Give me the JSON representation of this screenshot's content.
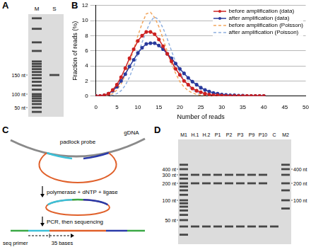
{
  "panel_a": {
    "letter": "A",
    "markers": [
      {
        "value": 150,
        "label": "150 nt"
      },
      {
        "value": 100,
        "label": "100 nt"
      },
      {
        "value": 50,
        "label": "50 nt"
      }
    ],
    "lanes": [
      {
        "label": "M",
        "bands": [
          40,
          50,
          60,
          70,
          80,
          90,
          100,
          110,
          120,
          130,
          140,
          150,
          160,
          170,
          180,
          190,
          200,
          250,
          300,
          400,
          500
        ]
      },
      {
        "label": "S",
        "bands": [
          150
        ]
      }
    ]
  },
  "panel_b": {
    "letter": "B"
  },
  "chart_data": {
    "type": "line",
    "xlabel": "Number of reads",
    "ylabel": "Fraction of reads (%)",
    "x": [
      0,
      1,
      2,
      3,
      4,
      5,
      6,
      7,
      8,
      9,
      10,
      11,
      12,
      13,
      14,
      15,
      16,
      17,
      18,
      19,
      20,
      21,
      22,
      23,
      24,
      25,
      26,
      27,
      28,
      29,
      30,
      31,
      32,
      33,
      34,
      35,
      36,
      37,
      38,
      39,
      40
    ],
    "xlim": [
      0,
      50
    ],
    "xticks": [
      0,
      5,
      10,
      15,
      20,
      25,
      30,
      35,
      40,
      45,
      50
    ],
    "ylim": [
      0,
      12
    ],
    "yticks": [
      0,
      2,
      4,
      6,
      8,
      10,
      12
    ],
    "grid": "y",
    "legend": "upper right",
    "series": [
      {
        "name": "before amplification (data)",
        "color": "#cc2222",
        "marker": "circle",
        "line_style": "solid",
        "values": [
          0,
          0,
          0.1,
          0.3,
          0.8,
          1.5,
          2.5,
          3.7,
          5.0,
          6.2,
          7.3,
          8.0,
          8.5,
          8.5,
          8.2,
          7.5,
          6.6,
          5.6,
          4.6,
          3.6,
          2.8,
          2.0,
          1.5,
          1.0,
          0.7,
          0.5,
          0.3,
          0.2,
          0.1,
          0.1,
          0.05,
          0,
          0,
          0,
          0,
          0,
          0,
          0,
          0,
          0,
          0
        ]
      },
      {
        "name": "after amplification (data)",
        "color": "#2a3a9c",
        "marker": "circle",
        "line_style": "solid",
        "values": [
          0,
          0,
          0.1,
          0.3,
          0.7,
          1.2,
          2.0,
          2.9,
          3.9,
          4.8,
          5.7,
          6.4,
          6.9,
          7.0,
          7.0,
          6.7,
          6.2,
          5.6,
          5.0,
          4.3,
          3.6,
          3.0,
          2.4,
          1.9,
          1.5,
          1.1,
          0.8,
          0.6,
          0.4,
          0.3,
          0.2,
          0.15,
          0.1,
          0.1,
          0.05,
          0.05,
          0,
          0,
          0,
          0,
          0
        ]
      },
      {
        "name": "before amplification (Poisson)",
        "color": "#f2a65e",
        "marker": "none",
        "line_style": "dashed",
        "values": [
          0,
          0,
          0,
          0.1,
          0.3,
          0.8,
          1.6,
          2.8,
          4.4,
          6.2,
          8.0,
          9.6,
          10.9,
          11.1,
          10.4,
          9.2,
          7.6,
          5.9,
          4.3,
          3.0,
          1.9,
          1.2,
          0.7,
          0.4,
          0.2,
          0.1,
          0.05,
          0,
          0,
          0,
          0,
          0,
          0,
          0,
          0,
          0,
          0,
          0,
          0,
          0,
          0
        ]
      },
      {
        "name": "after amplification (Poisson)",
        "color": "#8fb0e0",
        "marker": "none",
        "line_style": "dashed",
        "values": [
          0,
          0,
          0,
          0,
          0.1,
          0.3,
          0.7,
          1.4,
          2.5,
          3.9,
          5.5,
          7.1,
          8.6,
          9.9,
          10.5,
          10.1,
          9.0,
          7.6,
          6.0,
          4.5,
          3.2,
          2.1,
          1.3,
          0.8,
          0.5,
          0.3,
          0.15,
          0.1,
          0.05,
          0,
          0,
          0,
          0,
          0,
          0,
          0,
          0,
          0,
          0,
          0,
          0
        ]
      }
    ]
  },
  "panel_c": {
    "letter": "C",
    "probe_label": "padlock probe",
    "gdna_label": "gDNA",
    "step1": "polymerase + dNTP + ligase",
    "step2": "PCR, then sequencing",
    "primer_label": "seq primer",
    "length_label": "35 bases"
  },
  "panel_d": {
    "letter": "D",
    "markers_left": [
      {
        "value": 400,
        "label": "400 nt"
      },
      {
        "value": 300,
        "label": "300 nt"
      },
      {
        "value": 200,
        "label": "200 nt"
      },
      {
        "value": 100,
        "label": "100 nt"
      },
      {
        "value": 50,
        "label": "50 nt"
      }
    ],
    "markers_right": [
      {
        "value": 400,
        "label": "400 nt"
      },
      {
        "value": 200,
        "label": "200 nt"
      },
      {
        "value": 100,
        "label": "100 nt"
      }
    ],
    "lanes": [
      {
        "label": "M1",
        "bands": [
          500,
          400,
          300,
          250,
          200,
          175,
          150,
          125,
          100,
          90,
          80,
          70,
          60,
          50,
          40,
          30
        ]
      },
      {
        "label": "H.1",
        "bands": [
          300,
          200,
          40
        ]
      },
      {
        "label": "H.2",
        "bands": [
          300,
          200,
          40
        ]
      },
      {
        "label": "P1",
        "bands": [
          300,
          200,
          40
        ]
      },
      {
        "label": "P2",
        "bands": [
          300,
          200,
          40
        ]
      },
      {
        "label": "P3",
        "bands": [
          300,
          200,
          40
        ]
      },
      {
        "label": "P9",
        "bands": [
          300,
          200,
          40
        ]
      },
      {
        "label": "P10",
        "bands": [
          300,
          200,
          40
        ]
      },
      {
        "label": "C",
        "bands": [
          40
        ]
      },
      {
        "label": "M2",
        "bands": [
          500,
          400,
          300,
          200,
          150,
          100,
          75
        ]
      }
    ]
  }
}
